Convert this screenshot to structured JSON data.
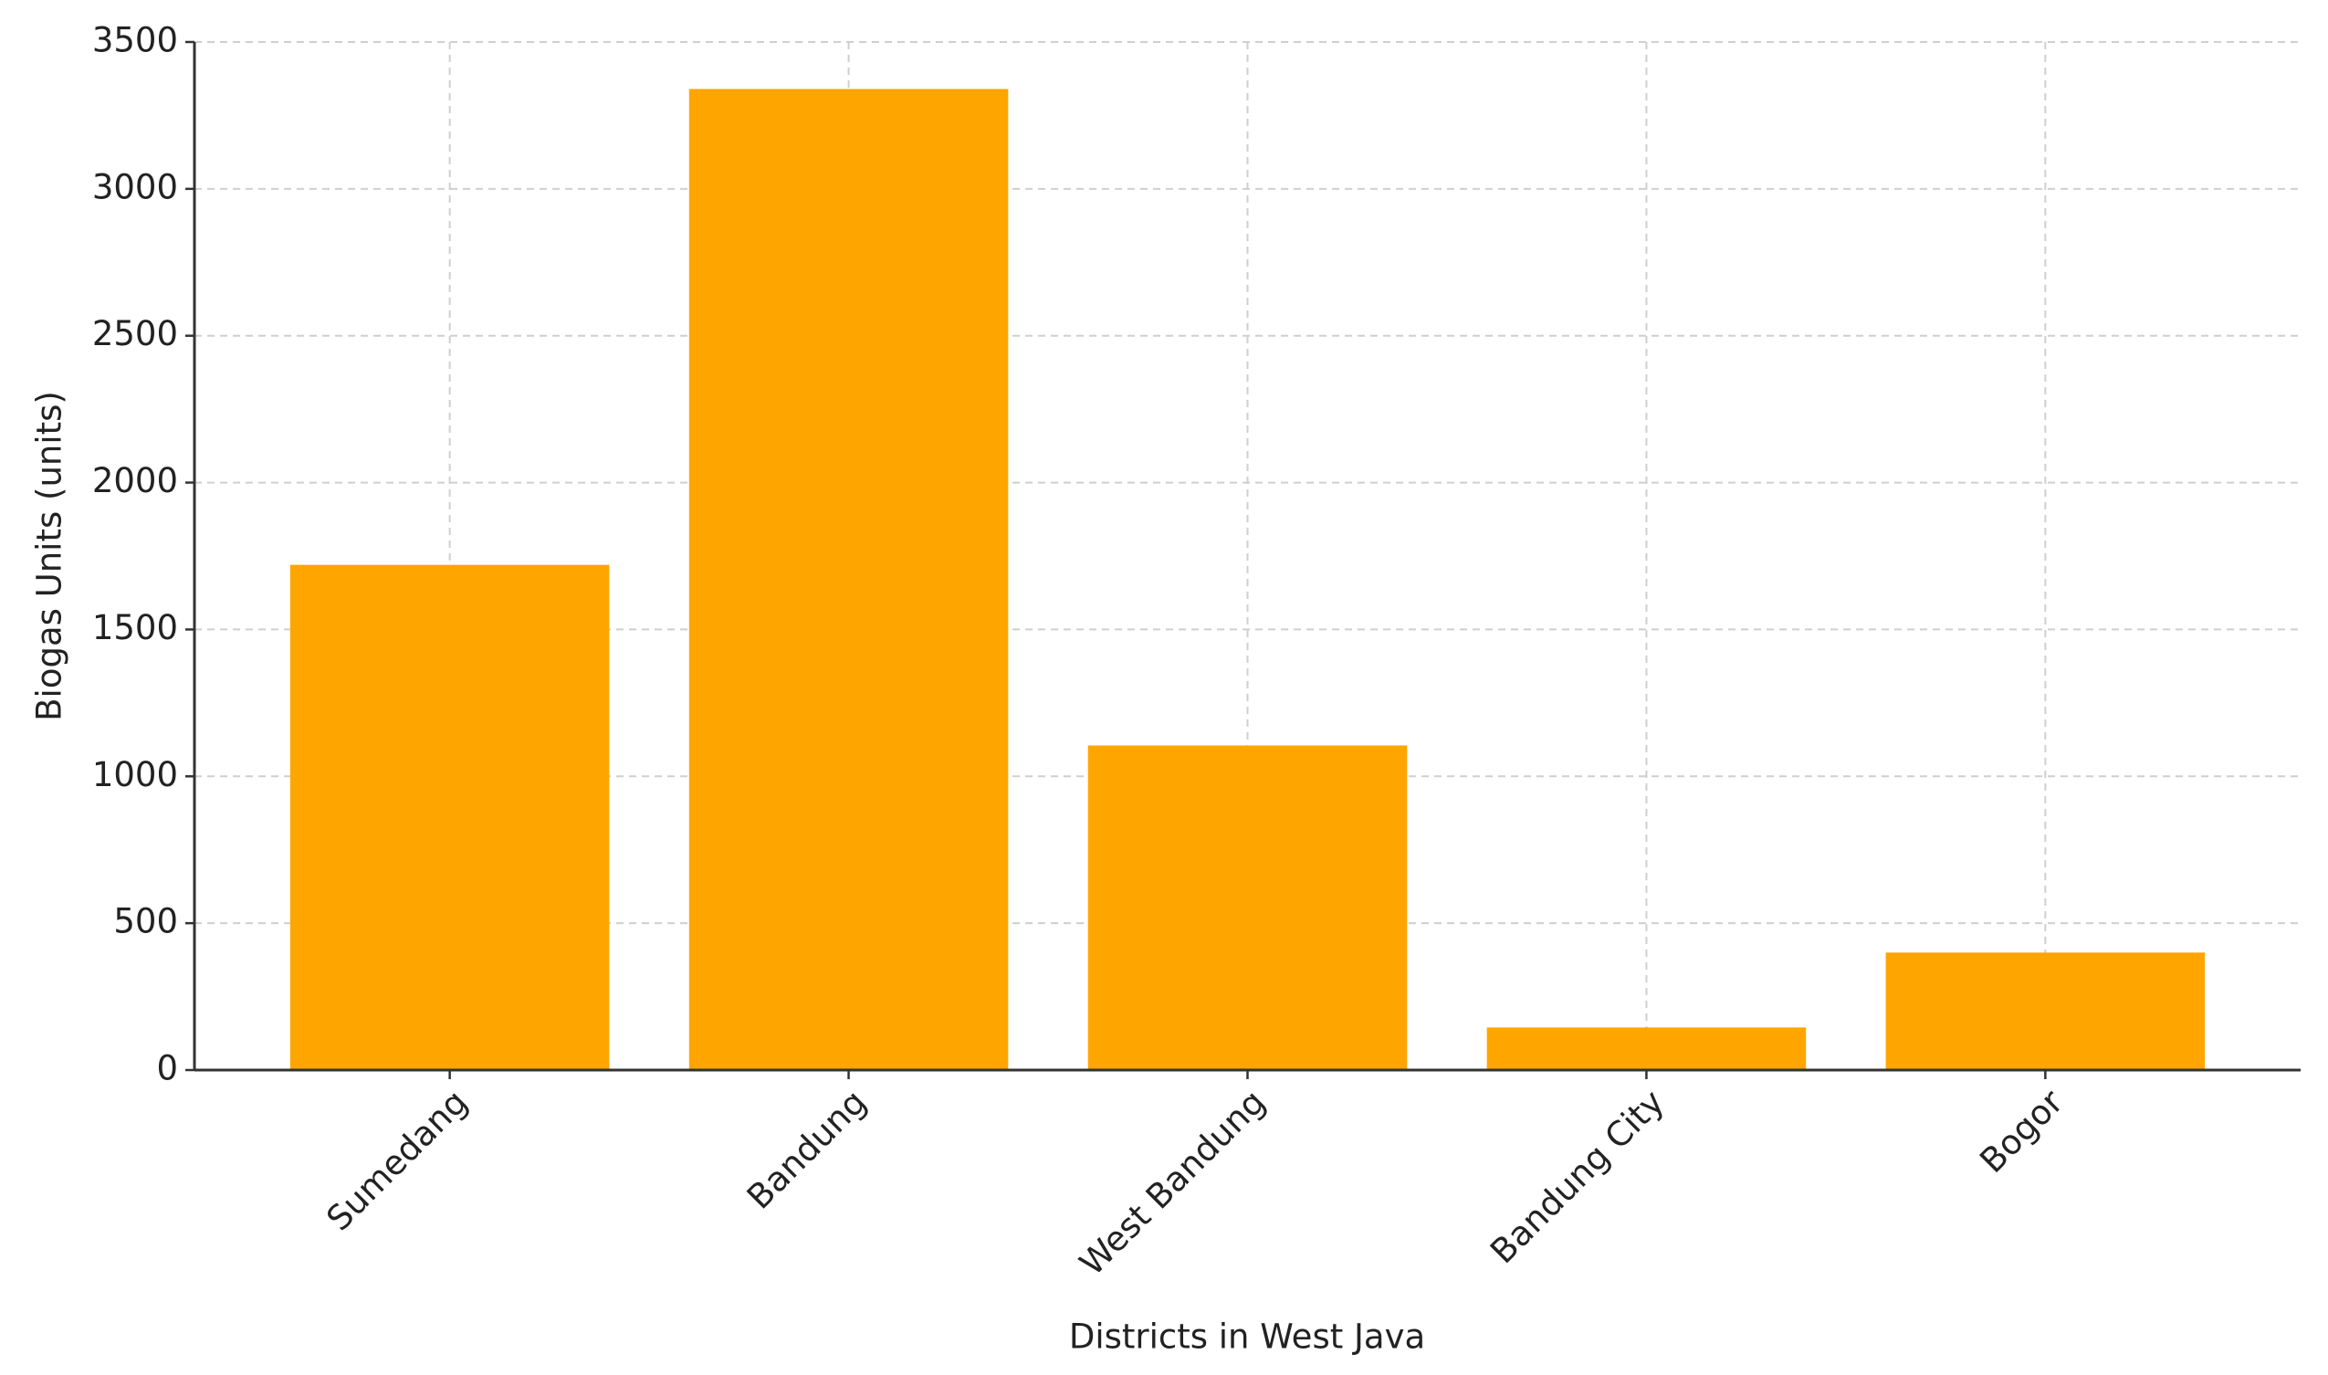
{
  "chart_data": {
    "type": "bar",
    "x_label": "Districts in West Java",
    "y_label": "Biogas Units (units)",
    "categories": [
      "Sumedang",
      "Bandung",
      "West Bandung",
      "Bandung City",
      "Bogor"
    ],
    "values": [
      1720,
      3340,
      1105,
      145,
      400
    ],
    "color": "#ffa500",
    "ylim": [
      0,
      3500
    ],
    "yticks": [
      0,
      500,
      1000,
      1500,
      2000,
      2500,
      3000,
      3500
    ],
    "grid": true
  }
}
